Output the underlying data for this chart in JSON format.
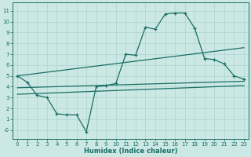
{
  "xlabel": "Humidex (Indice chaleur)",
  "bg_color": "#cce8e5",
  "grid_color": "#aad4cf",
  "line_color": "#1a6e65",
  "xlim": [
    -0.5,
    23.5
  ],
  "ylim": [
    -0.8,
    11.8
  ],
  "xticks": [
    0,
    1,
    2,
    3,
    4,
    5,
    6,
    7,
    8,
    9,
    10,
    11,
    12,
    13,
    14,
    15,
    16,
    17,
    18,
    19,
    20,
    21,
    22,
    23
  ],
  "yticks": [
    0,
    1,
    2,
    3,
    4,
    5,
    6,
    7,
    8,
    9,
    10,
    11
  ],
  "ytick_labels": [
    "-0",
    "1",
    "2",
    "3",
    "4",
    "5",
    "6",
    "7",
    "8",
    "9",
    "10",
    "11"
  ],
  "main_line_x": [
    0,
    1,
    2,
    3,
    4,
    5,
    6,
    7,
    8,
    9,
    10,
    11,
    12,
    13,
    14,
    15,
    16,
    17,
    18,
    19,
    20,
    21,
    22,
    23
  ],
  "main_line_y": [
    5.0,
    4.4,
    3.2,
    3.0,
    1.5,
    1.4,
    1.4,
    -0.15,
    4.0,
    4.1,
    4.3,
    7.0,
    6.9,
    9.5,
    9.3,
    10.7,
    10.8,
    10.8,
    9.4,
    6.6,
    6.5,
    6.1,
    5.0,
    4.7
  ],
  "trend1_x": [
    0,
    23
  ],
  "trend1_y": [
    5.0,
    7.6
  ],
  "trend2_x": [
    0,
    23
  ],
  "trend2_y": [
    3.9,
    4.5
  ],
  "trend3_x": [
    0,
    23
  ],
  "trend3_y": [
    3.3,
    4.1
  ]
}
